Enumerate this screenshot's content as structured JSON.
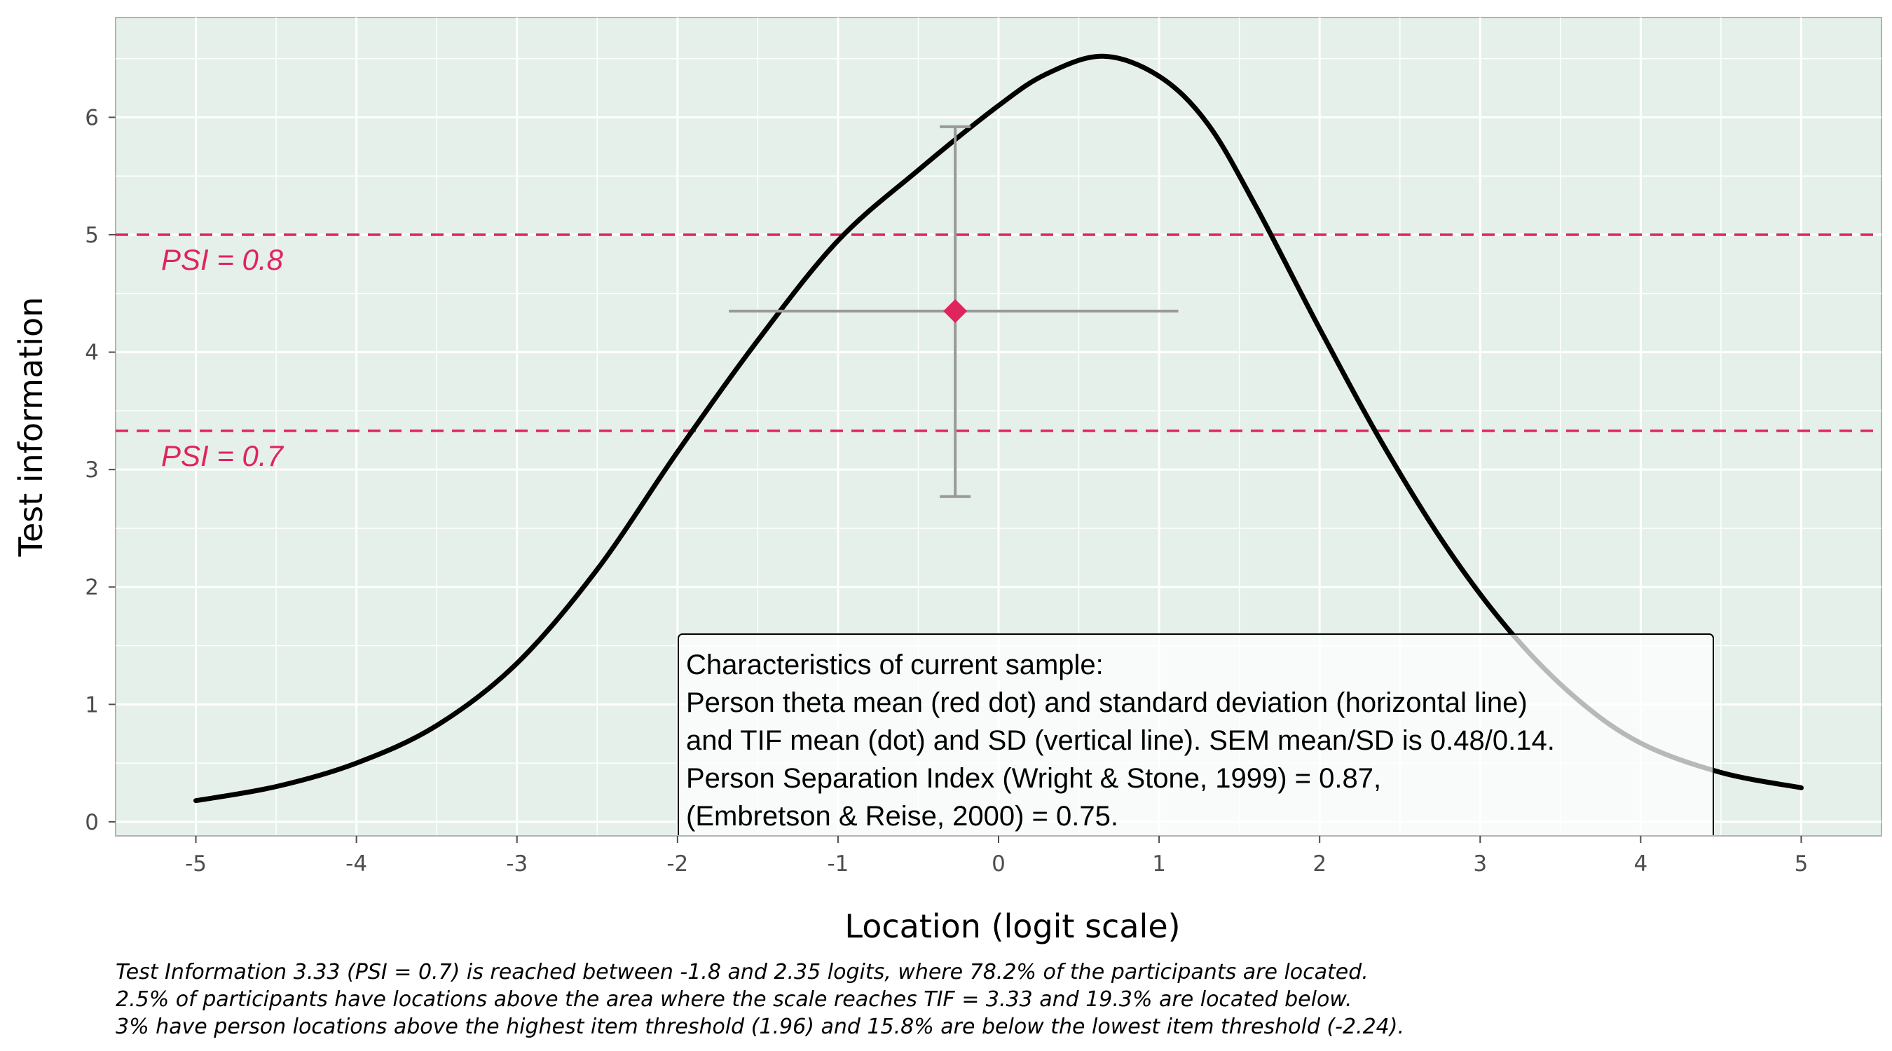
{
  "chart_data": {
    "type": "line",
    "xlabel": "Location (logit scale)",
    "ylabel": "Test information",
    "xlim": [
      -5.5,
      5.5
    ],
    "ylim": [
      -0.12,
      6.85
    ],
    "x_ticks": [
      -5,
      -4,
      -3,
      -2,
      -1,
      0,
      1,
      2,
      3,
      4,
      5
    ],
    "x_tick_labels": [
      "-5",
      "-4",
      "-3",
      "-2",
      "-1",
      "0",
      "1",
      "2",
      "3",
      "4",
      "5"
    ],
    "y_ticks": [
      0,
      1,
      2,
      3,
      4,
      5,
      6
    ],
    "y_tick_labels": [
      "0",
      "1",
      "2",
      "3",
      "4",
      "5",
      "6"
    ],
    "grid": true,
    "panel_background": "#e5f0ea",
    "series": [
      {
        "color": "#000000",
        "x": [
          -5.0,
          -4.5,
          -4.0,
          -3.5,
          -3.0,
          -2.5,
          -2.0,
          -1.5,
          -1.0,
          -0.5,
          0.0,
          0.3,
          0.65,
          1.0,
          1.3,
          1.6,
          2.0,
          2.4,
          2.8,
          3.2,
          3.6,
          4.0,
          4.5,
          5.0
        ],
        "y": [
          0.18,
          0.3,
          0.5,
          0.82,
          1.35,
          2.15,
          3.15,
          4.1,
          4.95,
          5.55,
          6.1,
          6.37,
          6.52,
          6.35,
          5.95,
          5.25,
          4.2,
          3.2,
          2.32,
          1.6,
          1.05,
          0.67,
          0.42,
          0.29
        ]
      }
    ],
    "reference_lines": [
      {
        "y": 5.0,
        "label": "PSI = 0.8",
        "color": "#e0245e",
        "style": "dashed"
      },
      {
        "y": 3.33,
        "label": "PSI = 0.7",
        "color": "#e0245e",
        "style": "dashed"
      }
    ],
    "summary_point": {
      "x": -0.27,
      "y": 4.35,
      "x_range": [
        -1.68,
        1.12
      ],
      "y_range": [
        2.77,
        5.92
      ],
      "marker_color": "#e0245e",
      "errorbar_color": "#999999"
    },
    "annotation": {
      "lines": [
        "Characteristics of current sample:",
        "Person theta mean (red dot) and standard deviation (horizontal line)",
        "and TIF mean (dot) and SD (vertical line). SEM mean/SD is 0.48/0.14.",
        "Person Separation Index (Wright & Stone, 1999) = 0.87,",
        "(Embretson & Reise, 2000) = 0.75."
      ]
    },
    "caption": [
      "Test Information 3.33 (PSI = 0.7) is reached between -1.8 and 2.35 logits, where 78.2% of the participants are located.",
      "2.5% of participants have locations above the area where the scale reaches TIF = 3.33 and 19.3% are located below.",
      "3% have person locations above the highest item threshold (1.96) and 15.8% are below the lowest item threshold (-2.24)."
    ]
  }
}
